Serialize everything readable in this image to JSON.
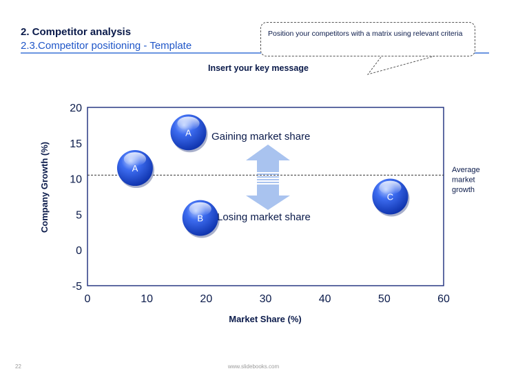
{
  "header": {
    "title": "2. Competitor analysis",
    "subtitle": "2.3.Competitor positioning - Template"
  },
  "callout": {
    "text": "Position your competitors with a matrix using relevant criteria"
  },
  "key_message": "Insert your key message",
  "footer": {
    "page_number": "22",
    "site": "www.slidebooks.com"
  },
  "colors": {
    "bubble": "#1f4fd6",
    "frame": "#1a2a7a",
    "arrow": "#a9c3ef",
    "text_dark": "#0a1a4a",
    "subtitle": "#1f56c8"
  },
  "chart_data": {
    "type": "scatter",
    "xlabel": "Market Share (%)",
    "ylabel": "Company Growth (%)",
    "xlim": [
      0,
      60
    ],
    "ylim": [
      -5,
      20
    ],
    "x_ticks": [
      "0",
      "10",
      "20",
      "30",
      "40",
      "50",
      "60"
    ],
    "y_ticks": [
      "20",
      "15",
      "10",
      "5",
      "0",
      "-5"
    ],
    "grid": false,
    "points": [
      {
        "label": "A",
        "x": 17,
        "y": 16.5
      },
      {
        "label": "A",
        "x": 8,
        "y": 11.5
      },
      {
        "label": "B",
        "x": 19,
        "y": 4.5
      },
      {
        "label": "C",
        "x": 51,
        "y": 7.5
      }
    ],
    "reference_line": {
      "y": 10.5,
      "label": [
        "Average",
        "market",
        "growth"
      ]
    },
    "annotations": {
      "gaining": "Gaining market share",
      "losing": "Losing market share"
    }
  }
}
